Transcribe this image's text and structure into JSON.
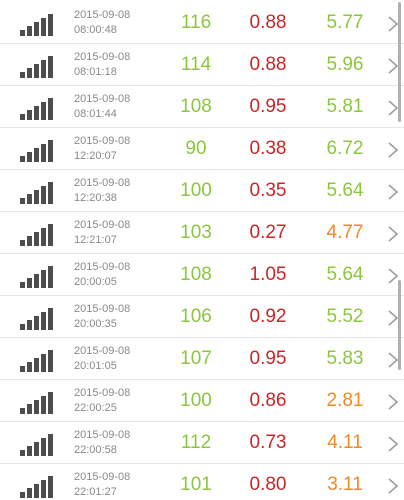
{
  "colors": {
    "green": "#8cc63f",
    "red": "#c62828",
    "orange": "#f08a24"
  },
  "rows": [
    {
      "date": "2015-09-08",
      "time": "08:00:48",
      "v1": "116",
      "v2": "0.88",
      "v3": "5.77",
      "c1": "green",
      "c2": "red",
      "c3": "green"
    },
    {
      "date": "2015-09-08",
      "time": "08:01:18",
      "v1": "114",
      "v2": "0.88",
      "v3": "5.96",
      "c1": "green",
      "c2": "red",
      "c3": "green"
    },
    {
      "date": "2015-09-08",
      "time": "08:01:44",
      "v1": "108",
      "v2": "0.95",
      "v3": "5.81",
      "c1": "green",
      "c2": "red",
      "c3": "green"
    },
    {
      "date": "2015-09-08",
      "time": "12:20:07",
      "v1": "90",
      "v2": "0.38",
      "v3": "6.72",
      "c1": "green",
      "c2": "red",
      "c3": "green"
    },
    {
      "date": "2015-09-08",
      "time": "12:20:38",
      "v1": "100",
      "v2": "0.35",
      "v3": "5.64",
      "c1": "green",
      "c2": "red",
      "c3": "green"
    },
    {
      "date": "2015-09-08",
      "time": "12:21:07",
      "v1": "103",
      "v2": "0.27",
      "v3": "4.77",
      "c1": "green",
      "c2": "red",
      "c3": "orange"
    },
    {
      "date": "2015-09-08",
      "time": "20:00:05",
      "v1": "108",
      "v2": "1.05",
      "v3": "5.64",
      "c1": "green",
      "c2": "red",
      "c3": "green"
    },
    {
      "date": "2015-09-08",
      "time": "20:00:35",
      "v1": "106",
      "v2": "0.92",
      "v3": "5.52",
      "c1": "green",
      "c2": "red",
      "c3": "green"
    },
    {
      "date": "2015-09-08",
      "time": "20:01:05",
      "v1": "107",
      "v2": "0.95",
      "v3": "5.83",
      "c1": "green",
      "c2": "red",
      "c3": "green"
    },
    {
      "date": "2015-09-08",
      "time": "22:00:25",
      "v1": "100",
      "v2": "0.86",
      "v3": "2.81",
      "c1": "green",
      "c2": "red",
      "c3": "orange"
    },
    {
      "date": "2015-09-08",
      "time": "22:00:58",
      "v1": "112",
      "v2": "0.73",
      "v3": "4.11",
      "c1": "green",
      "c2": "red",
      "c3": "orange"
    },
    {
      "date": "2015-09-08",
      "time": "22:01:27",
      "v1": "101",
      "v2": "0.80",
      "v3": "3.11",
      "c1": "green",
      "c2": "red",
      "c3": "orange"
    }
  ],
  "icons": {
    "row_icon": "signal-bars-icon",
    "row_action": "chevron-right-icon"
  }
}
